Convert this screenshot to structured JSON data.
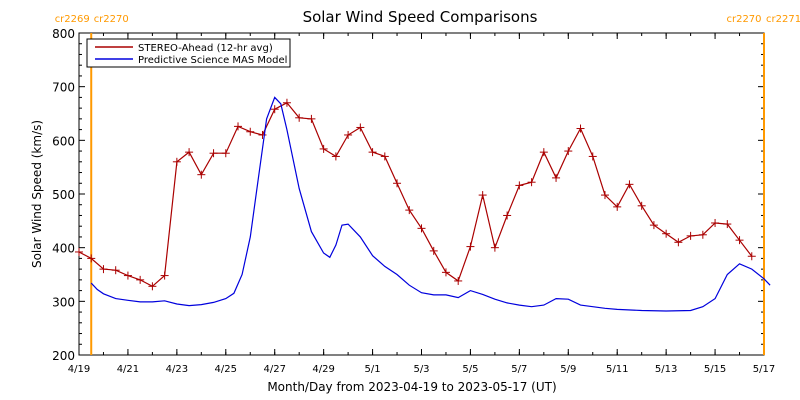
{
  "chart_data": {
    "type": "line",
    "title": "Solar Wind Speed Comparisons",
    "xlabel": "Month/Day from 2023-04-19 to 2023-05-17 (UT)",
    "ylabel": "Solar Wind Speed (km/s)",
    "ylim": [
      200,
      800
    ],
    "yticks": [
      200,
      300,
      400,
      500,
      600,
      700,
      800
    ],
    "xlim": [
      "2023-04-19",
      "2023-05-17"
    ],
    "xticks": [
      {
        "label": "4/19",
        "date": "2023-04-19"
      },
      {
        "label": "4/21",
        "date": "2023-04-21"
      },
      {
        "label": "4/23",
        "date": "2023-04-23"
      },
      {
        "label": "4/25",
        "date": "2023-04-25"
      },
      {
        "label": "4/27",
        "date": "2023-04-27"
      },
      {
        "label": "4/29",
        "date": "2023-04-29"
      },
      {
        "label": "5/1",
        "date": "2023-05-01"
      },
      {
        "label": "5/3",
        "date": "2023-05-03"
      },
      {
        "label": "5/5",
        "date": "2023-05-05"
      },
      {
        "label": "5/7",
        "date": "2023-05-07"
      },
      {
        "label": "5/9",
        "date": "2023-05-09"
      },
      {
        "label": "5/11",
        "date": "2023-05-11"
      },
      {
        "label": "5/13",
        "date": "2023-05-13"
      },
      {
        "label": "5/15",
        "date": "2023-05-15"
      },
      {
        "label": "5/17",
        "date": "2023-05-17"
      }
    ],
    "legend_position": "top-left",
    "carrington_markers": [
      {
        "date": "2023-04-19 12:00",
        "label_left": "cr2269",
        "label_right": "cr2270",
        "side": "left"
      },
      {
        "date": "2023-05-17 00:00",
        "label_left": "cr2270",
        "label_right": "cr2271",
        "side": "right"
      }
    ],
    "marker_color": "#ff9900",
    "series": [
      {
        "name": "STEREO-Ahead (12-hr avg)",
        "color": "#aa0000",
        "marker": "plus",
        "points": [
          [
            "2023-04-19 00:00",
            392
          ],
          [
            "2023-04-19 12:00",
            380
          ],
          [
            "2023-04-20 00:00",
            360
          ],
          [
            "2023-04-20 12:00",
            358
          ],
          [
            "2023-04-21 00:00",
            348
          ],
          [
            "2023-04-21 12:00",
            340
          ],
          [
            "2023-04-22 00:00",
            328
          ],
          [
            "2023-04-22 12:00",
            348
          ],
          [
            "2023-04-23 00:00",
            560
          ],
          [
            "2023-04-23 12:00",
            578
          ],
          [
            "2023-04-24 00:00",
            536
          ],
          [
            "2023-04-24 12:00",
            576
          ],
          [
            "2023-04-25 00:00",
            576
          ],
          [
            "2023-04-25 12:00",
            626
          ],
          [
            "2023-04-26 00:00",
            616
          ],
          [
            "2023-04-26 12:00",
            610
          ],
          [
            "2023-04-27 00:00",
            658
          ],
          [
            "2023-04-27 12:00",
            670
          ],
          [
            "2023-04-28 00:00",
            642
          ],
          [
            "2023-04-28 12:00",
            640
          ],
          [
            "2023-04-29 00:00",
            584
          ],
          [
            "2023-04-29 12:00",
            570
          ],
          [
            "2023-04-30 00:00",
            610
          ],
          [
            "2023-04-30 12:00",
            624
          ],
          [
            "2023-05-01 00:00",
            578
          ],
          [
            "2023-05-01 12:00",
            570
          ],
          [
            "2023-05-02 00:00",
            520
          ],
          [
            "2023-05-02 12:00",
            470
          ],
          [
            "2023-05-03 00:00",
            436
          ],
          [
            "2023-05-03 12:00",
            394
          ],
          [
            "2023-05-04 00:00",
            354
          ],
          [
            "2023-05-04 12:00",
            338
          ],
          [
            "2023-05-05 00:00",
            402
          ],
          [
            "2023-05-05 12:00",
            498
          ],
          [
            "2023-05-06 00:00",
            400
          ],
          [
            "2023-05-06 12:00",
            460
          ],
          [
            "2023-05-07 00:00",
            516
          ],
          [
            "2023-05-07 12:00",
            522
          ],
          [
            "2023-05-08 00:00",
            578
          ],
          [
            "2023-05-08 12:00",
            530
          ],
          [
            "2023-05-09 00:00",
            580
          ],
          [
            "2023-05-09 12:00",
            622
          ],
          [
            "2023-05-10 00:00",
            570
          ],
          [
            "2023-05-10 12:00",
            498
          ],
          [
            "2023-05-11 00:00",
            476
          ],
          [
            "2023-05-11 12:00",
            518
          ],
          [
            "2023-05-12 00:00",
            478
          ],
          [
            "2023-05-12 12:00",
            442
          ],
          [
            "2023-05-13 00:00",
            426
          ],
          [
            "2023-05-13 12:00",
            410
          ],
          [
            "2023-05-14 00:00",
            422
          ],
          [
            "2023-05-14 12:00",
            424
          ],
          [
            "2023-05-15 00:00",
            446
          ],
          [
            "2023-05-15 12:00",
            444
          ],
          [
            "2023-05-16 00:00",
            414
          ],
          [
            "2023-05-16 12:00",
            384
          ]
        ]
      },
      {
        "name": "Predictive Science MAS Model",
        "color": "#0000dd",
        "marker": "none",
        "points": [
          [
            "2023-04-19 12:00",
            334
          ],
          [
            "2023-04-19 18:00",
            322
          ],
          [
            "2023-04-20 00:00",
            314
          ],
          [
            "2023-04-20 12:00",
            305
          ],
          [
            "2023-04-21 00:00",
            302
          ],
          [
            "2023-04-21 12:00",
            299
          ],
          [
            "2023-04-22 00:00",
            299
          ],
          [
            "2023-04-22 12:00",
            301
          ],
          [
            "2023-04-23 00:00",
            295
          ],
          [
            "2023-04-23 12:00",
            292
          ],
          [
            "2023-04-24 00:00",
            294
          ],
          [
            "2023-04-24 12:00",
            298
          ],
          [
            "2023-04-25 00:00",
            305
          ],
          [
            "2023-04-25 08:00",
            315
          ],
          [
            "2023-04-25 16:00",
            350
          ],
          [
            "2023-04-26 00:00",
            420
          ],
          [
            "2023-04-26 08:00",
            530
          ],
          [
            "2023-04-26 16:00",
            640
          ],
          [
            "2023-04-27 00:00",
            680
          ],
          [
            "2023-04-27 06:00",
            668
          ],
          [
            "2023-04-27 12:00",
            620
          ],
          [
            "2023-04-28 00:00",
            510
          ],
          [
            "2023-04-28 12:00",
            430
          ],
          [
            "2023-04-29 00:00",
            390
          ],
          [
            "2023-04-29 06:00",
            382
          ],
          [
            "2023-04-29 12:00",
            405
          ],
          [
            "2023-04-29 18:00",
            442
          ],
          [
            "2023-04-30 00:00",
            444
          ],
          [
            "2023-04-30 12:00",
            420
          ],
          [
            "2023-05-01 00:00",
            385
          ],
          [
            "2023-05-01 12:00",
            365
          ],
          [
            "2023-05-02 00:00",
            350
          ],
          [
            "2023-05-02 12:00",
            330
          ],
          [
            "2023-05-03 00:00",
            316
          ],
          [
            "2023-05-03 12:00",
            312
          ],
          [
            "2023-05-04 00:00",
            312
          ],
          [
            "2023-05-04 12:00",
            307
          ],
          [
            "2023-05-05 00:00",
            320
          ],
          [
            "2023-05-05 12:00",
            313
          ],
          [
            "2023-05-06 00:00",
            304
          ],
          [
            "2023-05-06 12:00",
            297
          ],
          [
            "2023-05-07 00:00",
            293
          ],
          [
            "2023-05-07 12:00",
            290
          ],
          [
            "2023-05-08 00:00",
            293
          ],
          [
            "2023-05-08 12:00",
            305
          ],
          [
            "2023-05-09 00:00",
            304
          ],
          [
            "2023-05-09 12:00",
            293
          ],
          [
            "2023-05-10 00:00",
            290
          ],
          [
            "2023-05-10 12:00",
            287
          ],
          [
            "2023-05-11 00:00",
            285
          ],
          [
            "2023-05-12 00:00",
            283
          ],
          [
            "2023-05-13 00:00",
            282
          ],
          [
            "2023-05-14 00:00",
            283
          ],
          [
            "2023-05-14 12:00",
            290
          ],
          [
            "2023-05-15 00:00",
            305
          ],
          [
            "2023-05-15 12:00",
            350
          ],
          [
            "2023-05-16 00:00",
            370
          ],
          [
            "2023-05-16 12:00",
            360
          ],
          [
            "2023-05-17 00:00",
            342
          ],
          [
            "2023-05-17 06:00",
            330
          ]
        ]
      }
    ]
  }
}
